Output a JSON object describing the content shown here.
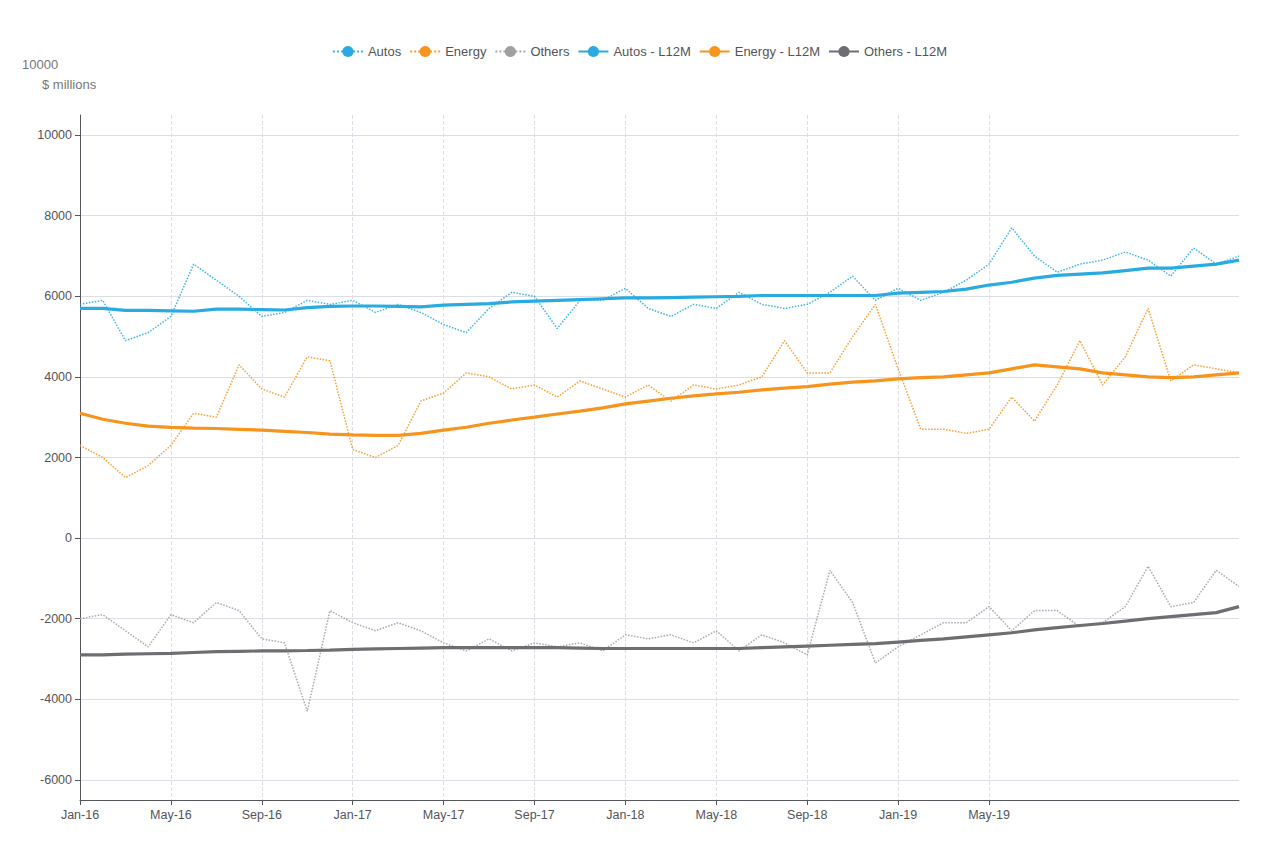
{
  "chart_data": {
    "type": "line",
    "annotations": [
      "10000"
    ],
    "ylabel": "$ millions",
    "categories": [
      "Jan-16",
      null,
      null,
      null,
      "May-16",
      null,
      null,
      null,
      "Sep-16",
      null,
      null,
      null,
      "Jan-17",
      null,
      null,
      null,
      "May-17",
      null,
      null,
      null,
      "Sep-17",
      null,
      null,
      null,
      "Jan-18",
      null,
      null,
      null,
      "May-18",
      null,
      null,
      null,
      "Sep-18",
      null,
      null,
      null,
      "Jan-19",
      null,
      null,
      null,
      "May-19",
      null,
      null,
      null,
      null,
      null,
      null,
      null,
      null,
      null,
      null,
      null
    ],
    "series": [
      {
        "name": "Autos",
        "color": "#29abe2",
        "line_style": "dotted",
        "values": [
          5800,
          5900,
          4900,
          5100,
          5500,
          6800,
          6400,
          6000,
          5500,
          5600,
          5900,
          5800,
          5900,
          5600,
          5800,
          5600,
          5300,
          5100,
          5700,
          6100,
          6000,
          5200,
          5900,
          5900,
          6200,
          5700,
          5500,
          5800,
          5700,
          6100,
          5800,
          5700,
          5800,
          6100,
          6500,
          5900,
          6200,
          5900,
          6100,
          6400,
          6800,
          7700,
          7000,
          6600,
          6800,
          6900,
          7100,
          6900,
          6500,
          7200,
          6800,
          7000
        ]
      },
      {
        "name": "Energy",
        "color": "#f7941d",
        "line_style": "dotted",
        "values": [
          2300,
          2000,
          1500,
          1800,
          2300,
          3100,
          3000,
          4300,
          3700,
          3500,
          4500,
          4400,
          2200,
          2000,
          2300,
          3400,
          3600,
          4100,
          4000,
          3700,
          3800,
          3500,
          3900,
          3700,
          3500,
          3800,
          3400,
          3800,
          3700,
          3800,
          4000,
          4900,
          4100,
          4100,
          5000,
          5800,
          4200,
          2700,
          2700,
          2600,
          2700,
          3500,
          2900,
          3800,
          4900,
          3800,
          4500,
          5700,
          3900,
          4300,
          4200,
          4100
        ]
      },
      {
        "name": "Others",
        "color": "#a0a0a0",
        "line_style": "dotted",
        "values": [
          -2000,
          -1900,
          -2300,
          -2700,
          -1900,
          -2100,
          -1600,
          -1800,
          -2500,
          -2600,
          -4300,
          -1800,
          -2100,
          -2300,
          -2100,
          -2300,
          -2600,
          -2800,
          -2500,
          -2800,
          -2600,
          -2700,
          -2600,
          -2800,
          -2400,
          -2500,
          -2400,
          -2600,
          -2300,
          -2800,
          -2400,
          -2600,
          -2900,
          -800,
          -1600,
          -3100,
          -2700,
          -2400,
          -2100,
          -2100,
          -1700,
          -2300,
          -1800,
          -1800,
          -2200,
          -2100,
          -1700,
          -700,
          -1700,
          -1600,
          -800,
          -1200
        ]
      },
      {
        "name": "Autos - L12M",
        "color": "#29abe2",
        "line_style": "solid",
        "values": [
          5700,
          5700,
          5650,
          5650,
          5640,
          5630,
          5680,
          5680,
          5670,
          5660,
          5720,
          5750,
          5760,
          5760,
          5750,
          5740,
          5780,
          5800,
          5820,
          5860,
          5880,
          5900,
          5920,
          5940,
          5960,
          5960,
          5970,
          5980,
          5990,
          6000,
          6020,
          6020,
          6020,
          6020,
          6020,
          6020,
          6080,
          6100,
          6120,
          6180,
          6280,
          6350,
          6450,
          6520,
          6550,
          6580,
          6640,
          6700,
          6700,
          6750,
          6800,
          6900
        ]
      },
      {
        "name": "Energy - L12M",
        "color": "#f7941d",
        "line_style": "solid",
        "values": [
          3100,
          2950,
          2850,
          2780,
          2750,
          2730,
          2720,
          2700,
          2680,
          2650,
          2620,
          2580,
          2560,
          2550,
          2550,
          2600,
          2680,
          2750,
          2850,
          2930,
          3000,
          3080,
          3150,
          3230,
          3330,
          3400,
          3470,
          3530,
          3580,
          3620,
          3680,
          3720,
          3760,
          3820,
          3870,
          3900,
          3950,
          3980,
          4000,
          4050,
          4100,
          4200,
          4300,
          4250,
          4200,
          4100,
          4050,
          4000,
          3980,
          4000,
          4050,
          4100
        ]
      },
      {
        "name": "Others - L12M",
        "color": "#6d6e71",
        "line_style": "solid",
        "values": [
          -2900,
          -2900,
          -2880,
          -2870,
          -2860,
          -2840,
          -2820,
          -2810,
          -2800,
          -2800,
          -2790,
          -2780,
          -2760,
          -2750,
          -2740,
          -2730,
          -2720,
          -2720,
          -2720,
          -2720,
          -2720,
          -2720,
          -2730,
          -2740,
          -2740,
          -2740,
          -2740,
          -2740,
          -2740,
          -2740,
          -2720,
          -2700,
          -2680,
          -2660,
          -2640,
          -2620,
          -2580,
          -2540,
          -2500,
          -2450,
          -2400,
          -2350,
          -2280,
          -2220,
          -2170,
          -2120,
          -2060,
          -2000,
          -1950,
          -1900,
          -1850,
          -1700
        ]
      }
    ],
    "ylim": [
      -6500,
      10500
    ],
    "yticks": [
      -6000,
      -4000,
      -2000,
      0,
      2000,
      4000,
      6000,
      8000,
      10000
    ],
    "grid": true,
    "legend": "top"
  }
}
